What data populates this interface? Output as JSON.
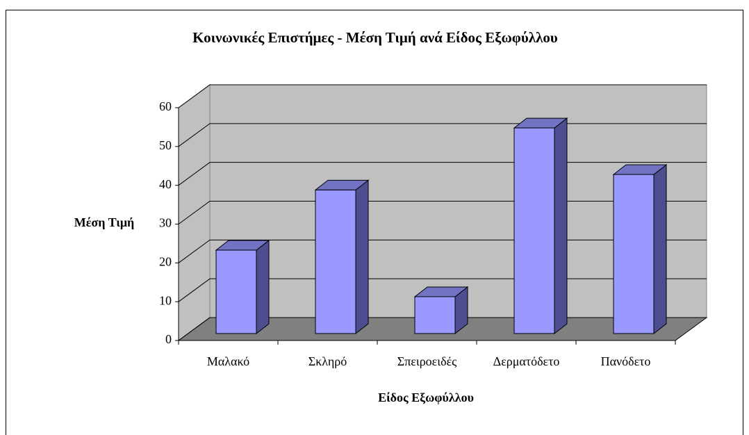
{
  "chart_data": {
    "type": "bar",
    "title": "Κοινωνικές Επιστήμες - Μέση Τιμή ανά Είδος Εξωφύλλου",
    "x_label": "Είδος Εξωφύλλου",
    "y_label": "Μέση Τιμή",
    "categories": [
      "Μαλακό",
      "Σκληρό",
      "Σπειροειδές",
      "Δερματόδετο",
      "Πανόδετο"
    ],
    "values": [
      21.5,
      37,
      9.5,
      53,
      41
    ],
    "color": "#9999ff",
    "ylim": [
      0,
      60
    ],
    "yticks": [
      0,
      10,
      20,
      30,
      40,
      50,
      60
    ],
    "grid": true
  }
}
